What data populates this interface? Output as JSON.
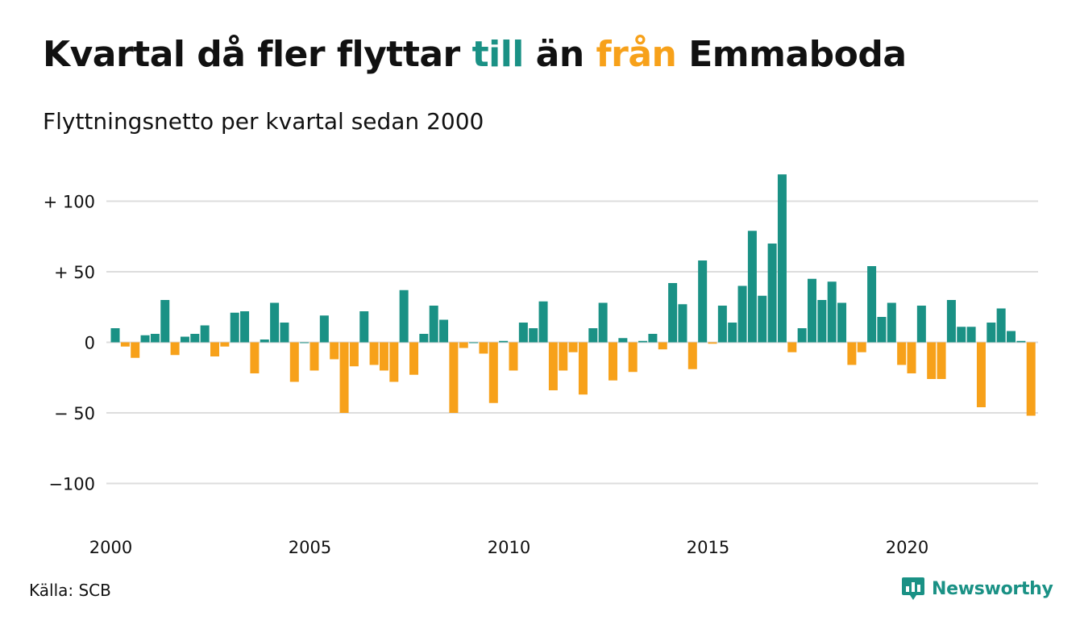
{
  "header": {
    "title_part1": "Kvartal då fler flyttar ",
    "title_till": "till",
    "title_part2": " än ",
    "title_fran": "från",
    "title_part3": " Emmaboda",
    "subtitle": "Flyttningsnetto per kvartal sedan 2000"
  },
  "footer": {
    "source": "Källa: SCB",
    "brand": "Newsworthy"
  },
  "colors": {
    "positive": "#1a9185",
    "negative": "#f7a11a",
    "grid": "#dddddd"
  },
  "chart_data": {
    "type": "bar",
    "title": "Kvartal då fler flyttar till än från Emmaboda",
    "subtitle": "Flyttningsnetto per kvartal sedan 2000",
    "x_start": "2000 Q1",
    "x_tick_labels": [
      "2000",
      "2005",
      "2010",
      "2015",
      "2020"
    ],
    "y_tick_labels": [
      "+ 100",
      "+  50",
      "0",
      "− 50",
      "−100"
    ],
    "y_ticks": [
      100,
      50,
      0,
      -50,
      -100
    ],
    "ylim": [
      -125,
      125
    ],
    "grid": true,
    "values": [
      10,
      -3,
      -11,
      5,
      6,
      30,
      -9,
      4,
      6,
      12,
      -10,
      -3,
      21,
      22,
      -22,
      2,
      28,
      14,
      -28,
      0,
      -20,
      19,
      -12,
      -50,
      -17,
      22,
      -16,
      -20,
      -28,
      37,
      -23,
      6,
      26,
      16,
      -50,
      -4,
      0,
      -8,
      -43,
      1,
      -20,
      14,
      10,
      29,
      -34,
      -20,
      -7,
      -37,
      10,
      28,
      -27,
      3,
      -21,
      1,
      6,
      -5,
      42,
      27,
      -19,
      58,
      -1,
      26,
      14,
      40,
      79,
      33,
      70,
      119,
      -7,
      10,
      45,
      30,
      43,
      28,
      -16,
      -7,
      54,
      18,
      28,
      -16,
      -22,
      26,
      -26,
      -26,
      30,
      11,
      11,
      -46,
      14,
      24,
      8,
      1,
      -52
    ]
  }
}
